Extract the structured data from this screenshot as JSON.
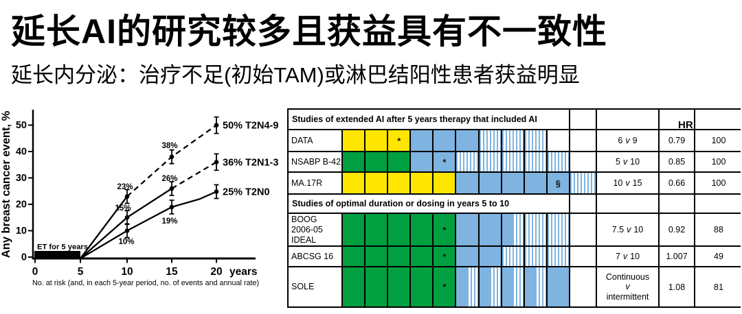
{
  "header": {
    "title": "延长AI的研究较多且获益具有不一致性",
    "subtitle": "延长内分泌：治疗不足(初始TAM)或淋巴结阳性患者获益明显"
  },
  "chart_data": {
    "type": "line",
    "ylabel": "Any breast cancer event, %",
    "xlabel_unit": "years",
    "x_ticks": [
      0,
      5,
      10,
      15,
      20
    ],
    "y_ticks": [
      0,
      10,
      20,
      30,
      40,
      50
    ],
    "ylim": [
      0,
      55
    ],
    "annotation_bar": "ET for 5 years",
    "footnote": "No. at risk (and, in each 5-year period, no. of events and annual rate)",
    "series": [
      {
        "name": "T2N4-9",
        "x": [
          5,
          10,
          15,
          20
        ],
        "values": [
          0,
          23,
          38,
          50
        ],
        "line_style": "solid then dashed after year 10",
        "end_label": "50% T2N4-9",
        "point_labels": [
          "23%",
          "38%"
        ]
      },
      {
        "name": "T2N1-3",
        "x": [
          5,
          10,
          15,
          20
        ],
        "values": [
          0,
          15,
          26,
          36
        ],
        "line_style": "solid then dashed after year 15",
        "end_label": "36% T2N1-3",
        "point_labels": [
          "15%",
          "26%"
        ]
      },
      {
        "name": "T2N0",
        "x": [
          5,
          10,
          15,
          20
        ],
        "values": [
          0,
          10,
          19,
          25
        ],
        "line_style": "solid",
        "end_label": "25% T2N0",
        "point_labels": [
          "10%",
          "19%"
        ]
      }
    ]
  },
  "colors": {
    "tam": "#FFE600",
    "any": "#00A041",
    "ai": "#7FB3E0",
    "border": "#000000"
  },
  "table": {
    "section1_header": "Studies of extended AI after 5 years therapy that included AI",
    "section2_header": "Studies of optimal duration or dosing in years 5 to 10",
    "hr_header": "HR",
    "legend_note": "cell codes: tam=yellow tamoxifen year, any=green endocrine year, ai=blue AI year, rand=hatched randomized extension year, none=empty; * and § are footnote marks",
    "rows": [
      {
        "name": "DATA",
        "cells": [
          "tam",
          "tam",
          "tam*",
          "ai",
          "ai",
          "ai",
          "rand",
          "rand",
          "rand",
          "none",
          "none"
        ],
        "comp_a": "6",
        "comp_v": "v",
        "comp_b": "9",
        "hr": "0.79",
        "n": "100"
      },
      {
        "name": "NSABP B-42",
        "cells": [
          "any",
          "any",
          "any",
          "ai",
          "ai*",
          "rand",
          "rand",
          "rand",
          "rand",
          "rand",
          "none"
        ],
        "comp_a": "5",
        "comp_v": "v",
        "comp_b": "10",
        "hr": "0.85",
        "n": "100"
      },
      {
        "name": "MA.17R",
        "cells": [
          "tam",
          "tam",
          "tam",
          "tam",
          "tam",
          "ai",
          "ai",
          "ai",
          "ai",
          "ai§",
          "rand"
        ],
        "comp_a": "10",
        "comp_v": "v",
        "comp_b": "15",
        "hr": "0.66",
        "n": "100"
      },
      {
        "name": "BOOG\n2006-05\nIDEAL",
        "cells": [
          "any",
          "any",
          "any",
          "any",
          "any*",
          "ai",
          "ai",
          "ai|rand",
          "rand",
          "rand",
          "none"
        ],
        "comp_a": "7.5",
        "comp_v": "v",
        "comp_b": "10",
        "hr": "0.92",
        "n": "88"
      },
      {
        "name": "ABCSG 16",
        "cells": [
          "any",
          "any",
          "any",
          "any",
          "any*",
          "ai",
          "ai",
          "rand",
          "rand",
          "rand",
          "none"
        ],
        "comp_a": "7",
        "comp_v": "v",
        "comp_b": "10",
        "hr": "1.007",
        "n": "49"
      },
      {
        "name": "SOLE",
        "cells": [
          "any",
          "any",
          "any",
          "any",
          "any*",
          "ai|rand",
          "ai|rand",
          "ai|rand",
          "ai|rand",
          "ai",
          "none"
        ],
        "comp_a": "Continuous",
        "comp_v": "v",
        "comp_b": "intermittent",
        "hr": "1.08",
        "n": "81"
      }
    ]
  }
}
